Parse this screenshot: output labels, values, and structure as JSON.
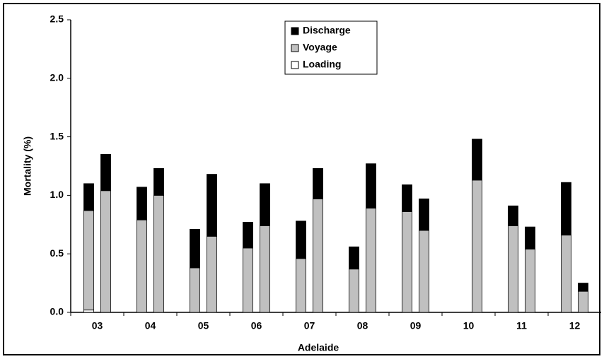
{
  "chart_data": {
    "type": "bar",
    "stacked": true,
    "x_label": "Adelaide",
    "y_label": "Mortality (%)",
    "categories": [
      "03",
      "04",
      "05",
      "06",
      "07",
      "08",
      "09",
      "10",
      "11",
      "12"
    ],
    "series": [
      {
        "name": "Loading",
        "color": "#ffffff",
        "values": [
          [
            0.02,
            0
          ],
          [
            0,
            0
          ],
          [
            0,
            0
          ],
          [
            0,
            0
          ],
          [
            0,
            0
          ],
          [
            0,
            0
          ],
          [
            0,
            0
          ],
          [
            null,
            0
          ],
          [
            0,
            0
          ],
          [
            0,
            0
          ]
        ]
      },
      {
        "name": "Voyage",
        "color": "#c0c0c0",
        "values": [
          [
            0.85,
            1.04
          ],
          [
            0.79,
            1.0
          ],
          [
            0.38,
            0.65
          ],
          [
            0.55,
            0.74
          ],
          [
            0.46,
            0.97
          ],
          [
            0.37,
            0.89
          ],
          [
            0.86,
            0.7
          ],
          [
            null,
            1.13
          ],
          [
            0.74,
            0.54
          ],
          [
            0.66,
            0.18
          ]
        ]
      },
      {
        "name": "Discharge",
        "color": "#000000",
        "values": [
          [
            0.23,
            0.31
          ],
          [
            0.28,
            0.23
          ],
          [
            0.33,
            0.53
          ],
          [
            0.22,
            0.36
          ],
          [
            0.32,
            0.26
          ],
          [
            0.19,
            0.38
          ],
          [
            0.23,
            0.27
          ],
          [
            null,
            0.35
          ],
          [
            0.17,
            0.19
          ],
          [
            0.45,
            0.07
          ]
        ]
      }
    ],
    "ylim": [
      0,
      2.5
    ],
    "yticks": [
      {
        "value": 0,
        "label": "0.0"
      },
      {
        "value": 0.5,
        "label": "0.5"
      },
      {
        "value": 1,
        "label": "1.0"
      },
      {
        "value": 1.5,
        "label": "1.5"
      },
      {
        "value": 2,
        "label": "2.0"
      },
      {
        "value": 2.5,
        "label": "2.5"
      }
    ],
    "grid": false
  }
}
